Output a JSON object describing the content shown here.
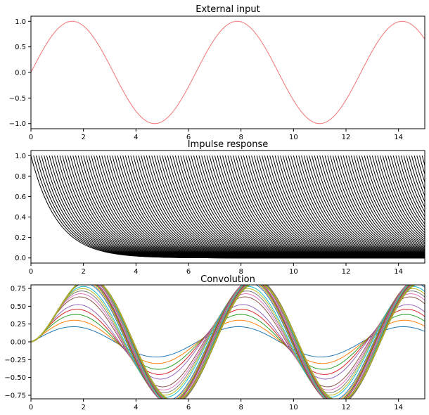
{
  "chart_data": [
    {
      "type": "line",
      "title": "External input",
      "xlabel": "",
      "ylabel": "",
      "xlim": [
        0,
        15
      ],
      "ylim": [
        -1.1,
        1.1
      ],
      "xticks": [
        0,
        2,
        4,
        6,
        8,
        10,
        12,
        14
      ],
      "yticks": [
        1.0,
        0.5,
        0.0,
        -0.5,
        -1.0
      ],
      "ytick_labels": [
        "1.0",
        "0.5",
        "0.0",
        "−0.5",
        "−1.0"
      ],
      "line_color": "#f08080",
      "series": [
        {
          "x": [
            0,
            0.5,
            1,
            1.5,
            2,
            2.5,
            3,
            3.5,
            4,
            4.5,
            5,
            5.5,
            6,
            6.5,
            7,
            7.5,
            8,
            8.5,
            9,
            9.5,
            10,
            10.5,
            11,
            11.5,
            12,
            12.5,
            13,
            13.5,
            14,
            14.5,
            15
          ],
          "y": [
            0,
            0.48,
            0.84,
            1.0,
            0.91,
            0.6,
            0.14,
            -0.35,
            -0.76,
            -0.98,
            -0.96,
            -0.71,
            -0.28,
            0.22,
            0.66,
            0.94,
            0.99,
            0.8,
            0.41,
            -0.08,
            -0.54,
            -0.88,
            -1.0,
            -0.88,
            -0.54,
            -0.07,
            0.42,
            0.8,
            0.99,
            0.93,
            0.65
          ]
        }
      ]
    },
    {
      "type": "line",
      "title": "Impulse response",
      "xlabel": "",
      "ylabel": "",
      "xlim": [
        0,
        15
      ],
      "ylim": [
        -0.05,
        1.05
      ],
      "xticks": [
        0,
        2,
        4,
        6,
        8,
        10,
        12,
        14
      ],
      "yticks": [
        0.0,
        0.2,
        0.4,
        0.6,
        0.8,
        1.0
      ],
      "ytick_labels": [
        "0.0",
        "0.2",
        "0.4",
        "0.6",
        "0.8",
        "1.0"
      ],
      "line_color": "#000000",
      "description_free_params": {
        "decay_rate": 1.0,
        "shift_step": 0.1,
        "shift_count": 150
      }
    },
    {
      "type": "line",
      "title": "Convolution",
      "xlabel": "",
      "ylabel": "",
      "xlim": [
        0,
        15
      ],
      "ylim": [
        -0.8,
        0.8
      ],
      "xticks": [
        0,
        2,
        4,
        6,
        8,
        10,
        12,
        14
      ],
      "yticks": [
        0.75,
        0.5,
        0.25,
        0.0,
        -0.25,
        -0.5,
        -0.75
      ],
      "ytick_labels": [
        "0.75",
        "0.50",
        "0.25",
        "0.00",
        "−0.25",
        "−0.50",
        "−0.75"
      ],
      "palette": [
        "#1f77b4",
        "#ff7f0e",
        "#2ca02c",
        "#d62728",
        "#9467bd",
        "#8c564b",
        "#e377c2",
        "#7f7f7f",
        "#bcbd22",
        "#17becf"
      ],
      "envelope": {
        "x": [
          0,
          1,
          2,
          2.3,
          3,
          4,
          4.5,
          5.4,
          6,
          7,
          8,
          8.6,
          9,
          10,
          11,
          11.8,
          12.5,
          13.5,
          14.5,
          15
        ],
        "y": [
          0.0,
          0.45,
          0.78,
          0.79,
          0.6,
          -0.1,
          -0.45,
          -0.75,
          -0.6,
          0.05,
          0.62,
          0.75,
          0.65,
          -0.1,
          -0.6,
          -0.75,
          -0.55,
          0.2,
          0.72,
          0.72
        ]
      }
    }
  ]
}
